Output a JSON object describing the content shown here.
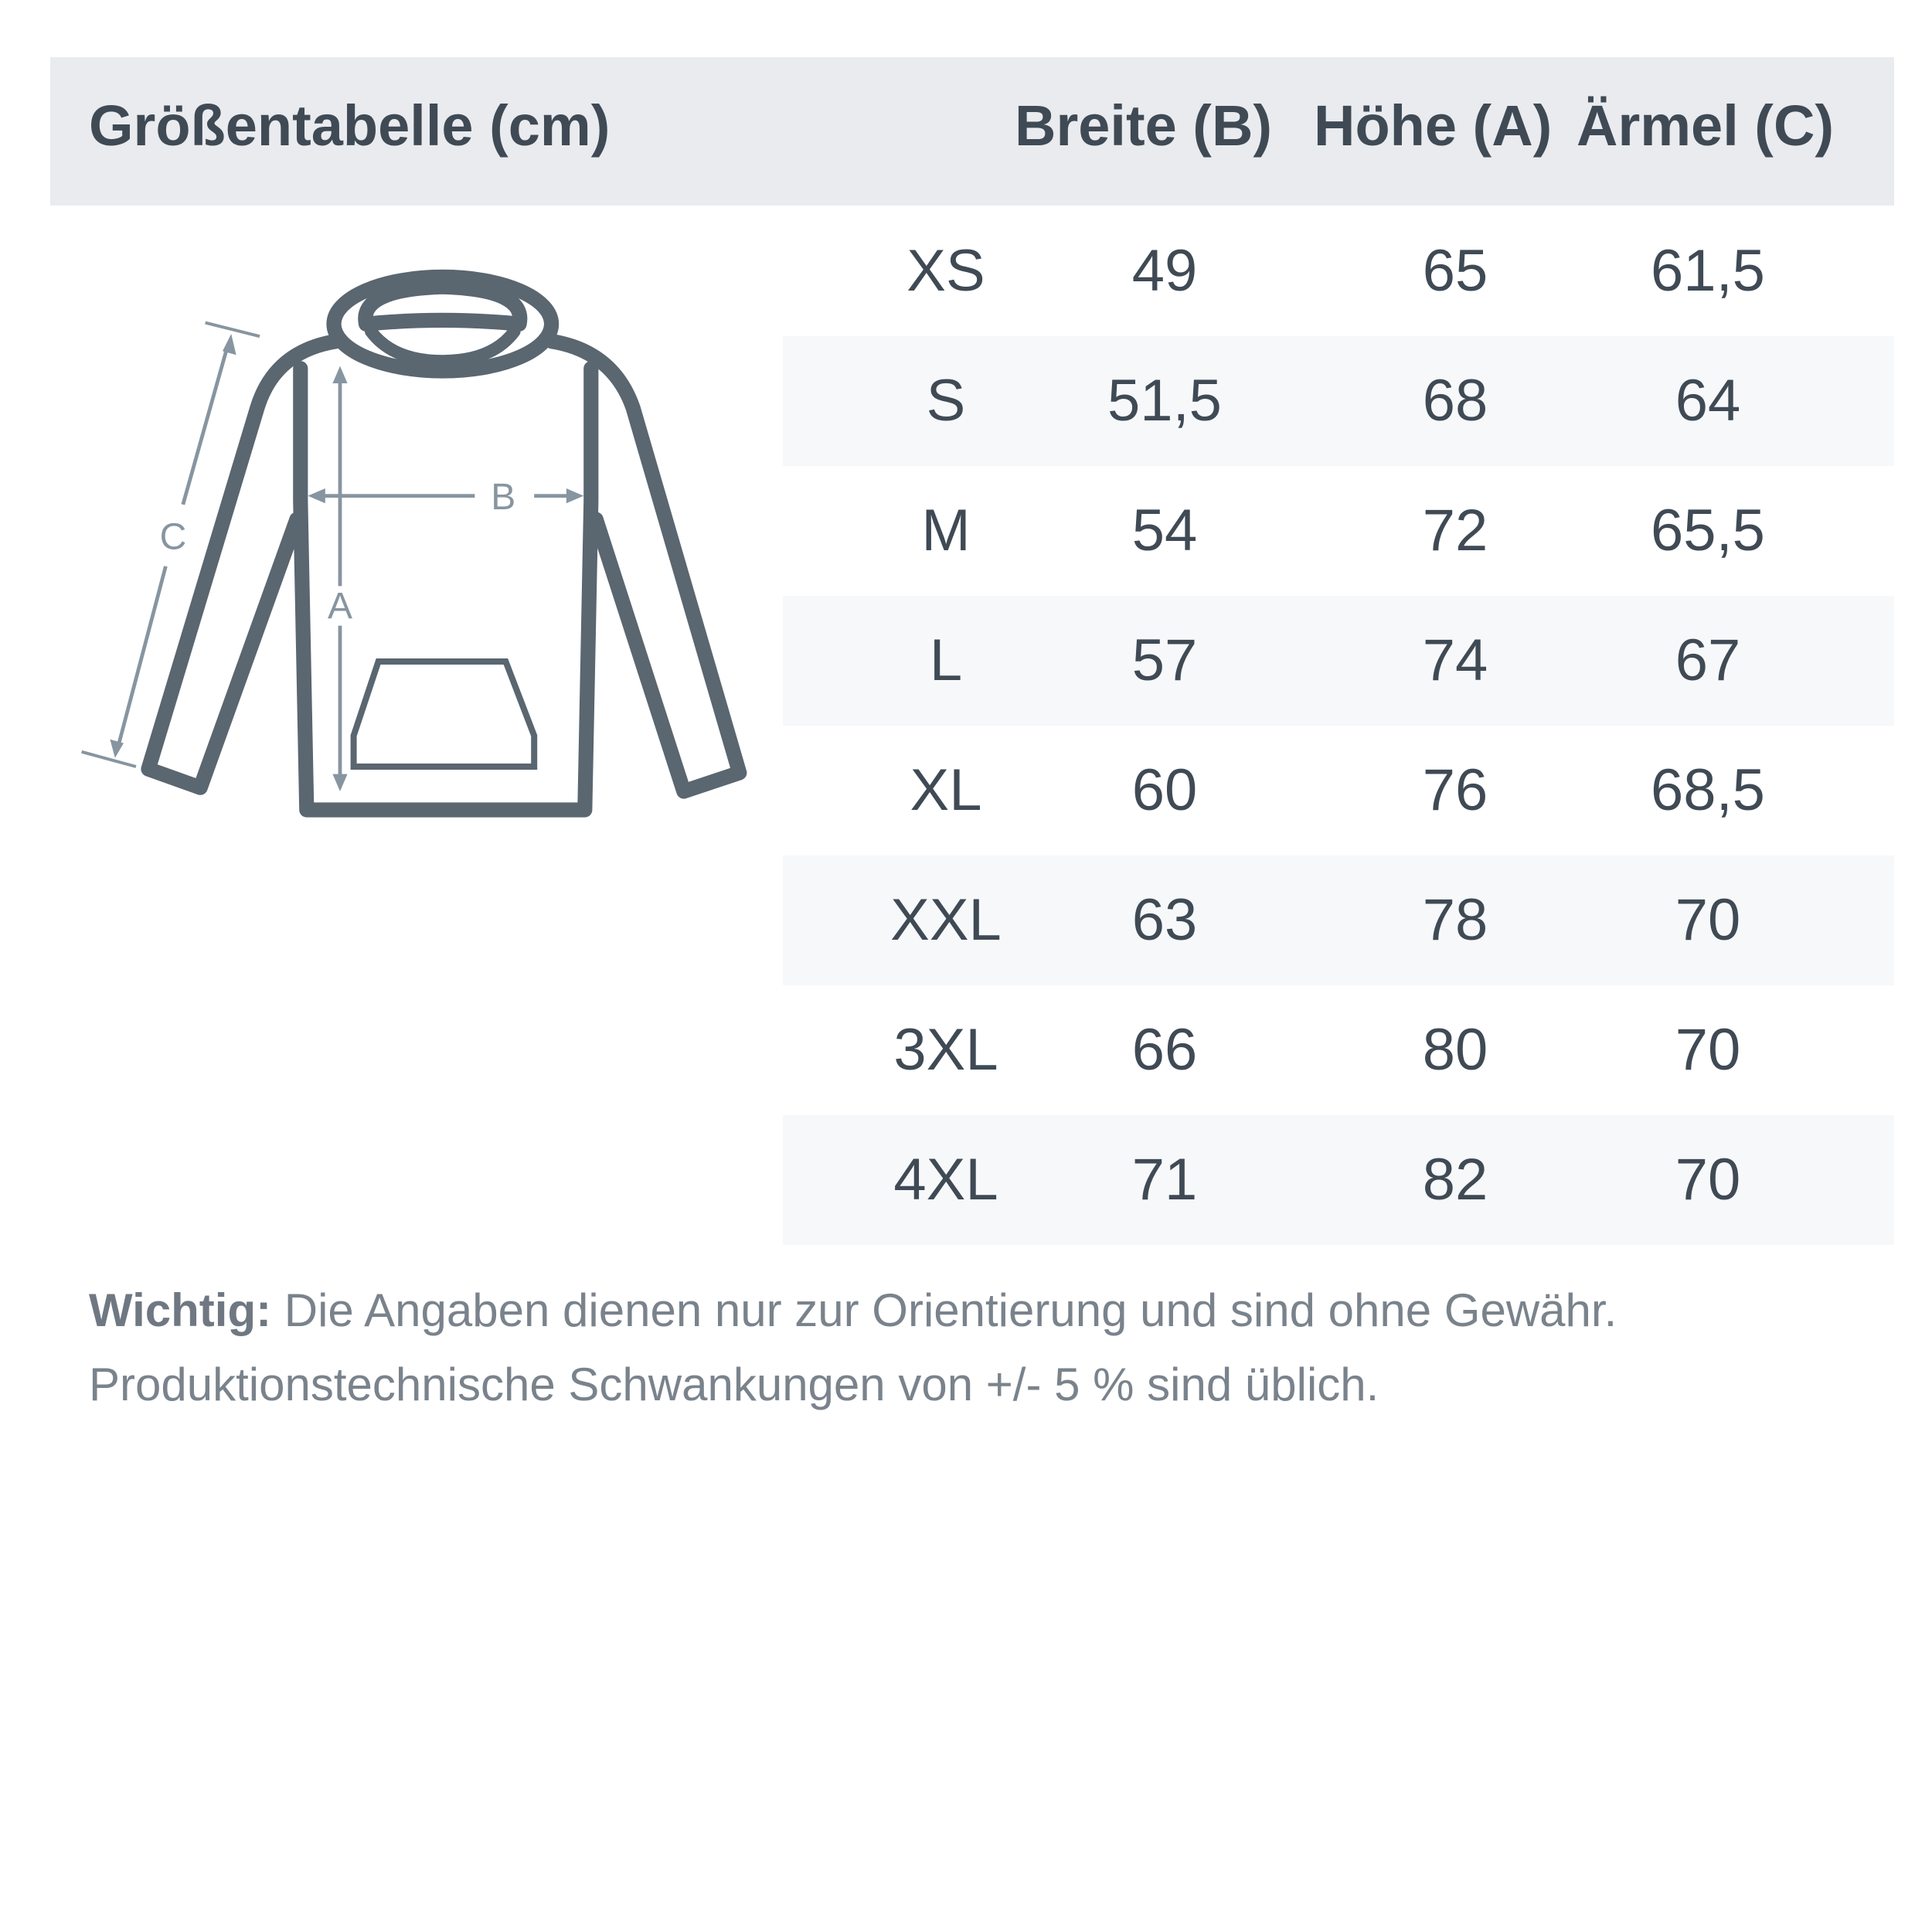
{
  "header": {
    "title": "Größentabelle (cm)",
    "columns": [
      "Breite (B)",
      "Höhe (A)",
      "Ärmel (C)"
    ]
  },
  "diagram": {
    "labels": {
      "a": "A",
      "b": "B",
      "c": "C"
    }
  },
  "rows": [
    {
      "size": "XS",
      "b": "49",
      "a": "65",
      "c": "61,5"
    },
    {
      "size": "S",
      "b": "51,5",
      "a": "68",
      "c": "64"
    },
    {
      "size": "M",
      "b": "54",
      "a": "72",
      "c": "65,5"
    },
    {
      "size": "L",
      "b": "57",
      "a": "74",
      "c": "67"
    },
    {
      "size": "XL",
      "b": "60",
      "a": "76",
      "c": "68,5"
    },
    {
      "size": "XXL",
      "b": "63",
      "a": "78",
      "c": "70"
    },
    {
      "size": "3XL",
      "b": "66",
      "a": "80",
      "c": "70"
    },
    {
      "size": "4XL",
      "b": "71",
      "a": "82",
      "c": "70"
    }
  ],
  "note": {
    "label": "Wichtig:",
    "line1": " Die Angaben dienen nur zur Orientierung und sind ohne Gewähr.",
    "line2": "Produktionstechnische Schwankungen von +/- 5 % sind üblich."
  },
  "colors": {
    "header_bg": "#e9ebef",
    "stripe": "#f7f8fa",
    "text": "#3f4a55",
    "outline": "#5a6670",
    "arrow": "#8795a0"
  }
}
